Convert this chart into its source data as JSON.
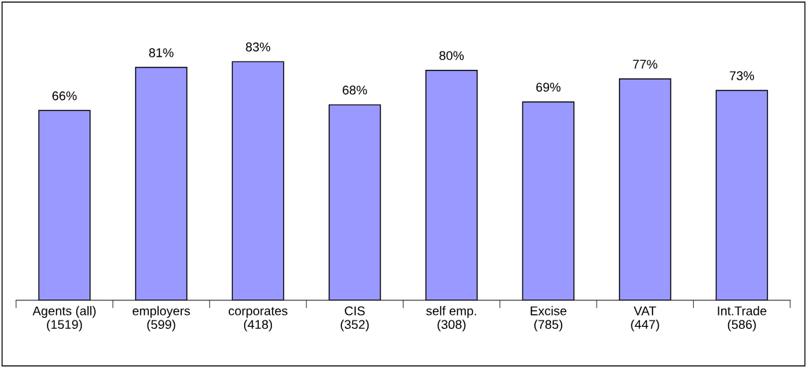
{
  "chart_data": {
    "type": "bar",
    "categories": [
      "Agents (all)\n(1519)",
      "employers\n(599)",
      "corporates\n(418)",
      "CIS\n(352)",
      "self emp.\n(308)",
      "Excise\n(785)",
      "VAT\n(447)",
      "Int.Trade\n(586)"
    ],
    "values": [
      66,
      81,
      83,
      68,
      80,
      69,
      77,
      73
    ],
    "value_labels": [
      "66%",
      "81%",
      "83%",
      "68%",
      "80%",
      "69%",
      "77%",
      "73%"
    ],
    "color": "#9999ff"
  }
}
